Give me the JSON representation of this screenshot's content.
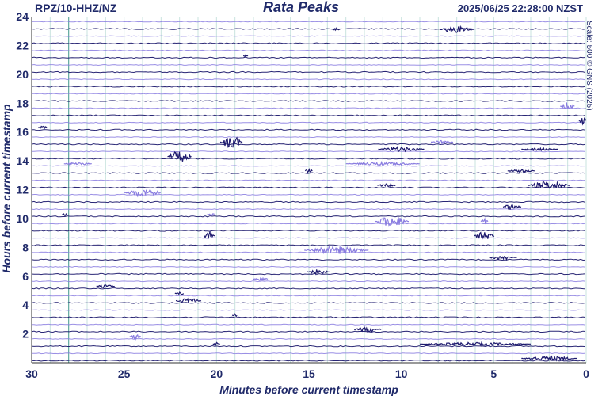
{
  "header": {
    "station": "RPZ/10-HHZ/NZ",
    "title": "Rata Peaks",
    "timestamp": "2025/06/25 22:28:00 NZST"
  },
  "scale_note": "Scale: 500 © GNS (2025)",
  "colors": {
    "text": "#202a6a",
    "trace_dark": "#1e1a6e",
    "trace_light": "#8a7de0",
    "grid": "#c9e3df",
    "marker": "#5fa89e"
  },
  "chart_data": {
    "type": "line",
    "xlabel": "Minutes before current timestamp",
    "ylabel": "Hours before current timestamp",
    "xlim": [
      30,
      0
    ],
    "ylim": [
      0,
      24
    ],
    "x_ticks": [
      30,
      25,
      20,
      15,
      10,
      5,
      0
    ],
    "y_ticks": [
      2,
      4,
      6,
      8,
      10,
      12,
      14,
      16,
      18,
      20,
      22,
      24
    ],
    "x_minor_step": 1,
    "traces_per_hour": 2,
    "grid": true,
    "highlighted_minute": 28,
    "events": [
      {
        "hour": 23.1,
        "minute": 13.5,
        "duration": 0.4,
        "amp": 3,
        "tone": "dark"
      },
      {
        "hour": 23.1,
        "minute": 7,
        "duration": 1.8,
        "amp": 4,
        "tone": "dark"
      },
      {
        "hour": 21.3,
        "minute": 18.4,
        "duration": 0.3,
        "amp": 2,
        "tone": "dark"
      },
      {
        "hour": 17.8,
        "minute": 1,
        "duration": 0.8,
        "amp": 5,
        "tone": "light"
      },
      {
        "hour": 16.8,
        "minute": 0.2,
        "duration": 0.4,
        "amp": 5,
        "tone": "dark"
      },
      {
        "hour": 16.3,
        "minute": 29.4,
        "duration": 0.5,
        "amp": 2,
        "tone": "dark"
      },
      {
        "hour": 15.3,
        "minute": 19.2,
        "duration": 1.2,
        "amp": 8,
        "tone": "dark"
      },
      {
        "hour": 15.3,
        "minute": 7.8,
        "duration": 1.2,
        "amp": 2,
        "tone": "light"
      },
      {
        "hour": 14.8,
        "minute": 10,
        "duration": 2.5,
        "amp": 3,
        "tone": "dark"
      },
      {
        "hour": 14.8,
        "minute": 2.5,
        "duration": 2,
        "amp": 2,
        "tone": "dark"
      },
      {
        "hour": 14.3,
        "minute": 22,
        "duration": 1.3,
        "amp": 7,
        "tone": "dark"
      },
      {
        "hour": 13.8,
        "minute": 27.5,
        "duration": 1.5,
        "amp": 2,
        "tone": "light"
      },
      {
        "hour": 13.8,
        "minute": 11,
        "duration": 4,
        "amp": 2,
        "tone": "light"
      },
      {
        "hour": 13.3,
        "minute": 15,
        "duration": 0.4,
        "amp": 3,
        "tone": "dark"
      },
      {
        "hour": 13.3,
        "minute": 3.5,
        "duration": 1.5,
        "amp": 2,
        "tone": "dark"
      },
      {
        "hour": 12.3,
        "minute": 10.8,
        "duration": 1,
        "amp": 3,
        "tone": "dark"
      },
      {
        "hour": 12.3,
        "minute": 2,
        "duration": 2.3,
        "amp": 5,
        "tone": "dark"
      },
      {
        "hour": 11.8,
        "minute": 24,
        "duration": 2,
        "amp": 5,
        "tone": "light"
      },
      {
        "hour": 10.8,
        "minute": 4,
        "duration": 1,
        "amp": 4,
        "tone": "dark"
      },
      {
        "hour": 10.3,
        "minute": 28.2,
        "duration": 0.3,
        "amp": 2,
        "tone": "dark"
      },
      {
        "hour": 10.3,
        "minute": 20.3,
        "duration": 0.4,
        "amp": 2,
        "tone": "light"
      },
      {
        "hour": 9.8,
        "minute": 10.5,
        "duration": 1.8,
        "amp": 7,
        "tone": "light"
      },
      {
        "hour": 9.8,
        "minute": 5.5,
        "duration": 0.4,
        "amp": 4,
        "tone": "light"
      },
      {
        "hour": 8.8,
        "minute": 20.4,
        "duration": 0.6,
        "amp": 5,
        "tone": "dark"
      },
      {
        "hour": 8.8,
        "minute": 5.5,
        "duration": 1.1,
        "amp": 5,
        "tone": "dark"
      },
      {
        "hour": 7.8,
        "minute": 13.5,
        "duration": 3.5,
        "amp": 5,
        "tone": "light"
      },
      {
        "hour": 7.3,
        "minute": 4.5,
        "duration": 1.5,
        "amp": 3,
        "tone": "dark"
      },
      {
        "hour": 6.3,
        "minute": 14.5,
        "duration": 1.2,
        "amp": 3,
        "tone": "dark"
      },
      {
        "hour": 5.8,
        "minute": 17.6,
        "duration": 0.8,
        "amp": 2,
        "tone": "light"
      },
      {
        "hour": 5.3,
        "minute": 26,
        "duration": 1,
        "amp": 2,
        "tone": "dark"
      },
      {
        "hour": 4.8,
        "minute": 22,
        "duration": 0.5,
        "amp": 2,
        "tone": "dark"
      },
      {
        "hour": 4.3,
        "minute": 21.5,
        "duration": 1.4,
        "amp": 3,
        "tone": "dark"
      },
      {
        "hour": 3.3,
        "minute": 19,
        "duration": 0.3,
        "amp": 2,
        "tone": "dark"
      },
      {
        "hour": 2.3,
        "minute": 11.8,
        "duration": 1.5,
        "amp": 3,
        "tone": "dark"
      },
      {
        "hour": 1.8,
        "minute": 24.4,
        "duration": 0.6,
        "amp": 3,
        "tone": "light"
      },
      {
        "hour": 1.3,
        "minute": 20,
        "duration": 0.4,
        "amp": 3,
        "tone": "dark"
      },
      {
        "hour": 1.3,
        "minute": 6,
        "duration": 6,
        "amp": 2,
        "tone": "dark"
      },
      {
        "hour": 0.3,
        "minute": 2,
        "duration": 3,
        "amp": 3,
        "tone": "dark"
      }
    ]
  }
}
